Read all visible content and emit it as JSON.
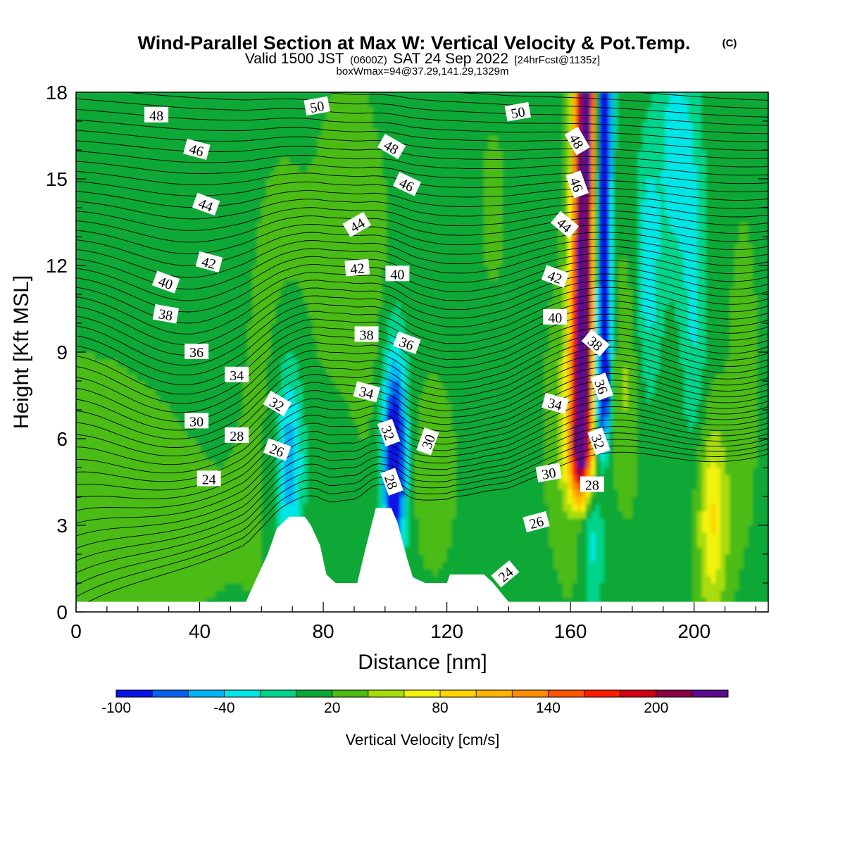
{
  "title": {
    "main": "Wind-Parallel Section at Max W: Vertical Velocity & Pot.Temp.",
    "copyright": "(C)",
    "valid_prefix": "Valid 1500 JST",
    "valid_z": "(0600Z)",
    "valid_date": "SAT 24 Sep 2022",
    "valid_fcst": "[24hrFcst@1135z]",
    "box_info": "boxWmax=94@37.29,141.29,1329m"
  },
  "chart_data": {
    "type": "heatmap",
    "xlabel": "Distance [nm]",
    "ylabel": "Height [Kft MSL]",
    "xlim": [
      0,
      224
    ],
    "ylim": [
      0,
      18
    ],
    "x_ticks": [
      0,
      40,
      80,
      120,
      160,
      200
    ],
    "y_ticks": [
      0,
      3,
      6,
      9,
      12,
      15,
      18
    ],
    "grid": false,
    "terrain_kft": [
      [
        0,
        0.35
      ],
      [
        55,
        0.35
      ],
      [
        56,
        0.6
      ],
      [
        59,
        1.3
      ],
      [
        62,
        2.0
      ],
      [
        65,
        2.9
      ],
      [
        69,
        3.3
      ],
      [
        74,
        3.3
      ],
      [
        76,
        3.0
      ],
      [
        79,
        2.3
      ],
      [
        81,
        1.3
      ],
      [
        84,
        1.0
      ],
      [
        91,
        1.0
      ],
      [
        93,
        1.9
      ],
      [
        97,
        3.6
      ],
      [
        102,
        3.6
      ],
      [
        104,
        3.1
      ],
      [
        107,
        1.9
      ],
      [
        109,
        1.2
      ],
      [
        113,
        1.0
      ],
      [
        120,
        1.0
      ],
      [
        121,
        1.3
      ],
      [
        132,
        1.3
      ],
      [
        135,
        1.0
      ],
      [
        138,
        0.6
      ],
      [
        140,
        0.35
      ],
      [
        224,
        0.35
      ]
    ],
    "colorbar": {
      "label": "Vertical Velocity [cm/s]",
      "tick_labels": [
        "-100",
        "-40",
        "20",
        "80",
        "140",
        "200"
      ],
      "tick_values": [
        -100,
        -40,
        20,
        80,
        140,
        200
      ],
      "levels": [
        -100,
        -80,
        -60,
        -40,
        -20,
        0,
        20,
        40,
        60,
        80,
        100,
        120,
        140,
        160,
        180,
        200,
        220,
        240
      ],
      "colors": [
        "#0a12e6",
        "#0660f0",
        "#00b4f5",
        "#00e6e6",
        "#00d48a",
        "#0aa834",
        "#4cbc14",
        "#a8dc0a",
        "#f2f20a",
        "#ffd200",
        "#ffb400",
        "#ff8c00",
        "#ff5500",
        "#ff1e00",
        "#d20014",
        "#8c0046",
        "#5a0a8c"
      ]
    },
    "theta_contours_label": "Pot.Temp.",
    "contour_labels": [
      {
        "v": "48",
        "x": 26,
        "y": 17.2,
        "r": 0
      },
      {
        "v": "50",
        "x": 78,
        "y": 17.5,
        "r": -10
      },
      {
        "v": "50",
        "x": 143,
        "y": 17.3,
        "r": -10
      },
      {
        "v": "46",
        "x": 39,
        "y": 16.0,
        "r": 15
      },
      {
        "v": "48",
        "x": 102,
        "y": 16.1,
        "r": 30
      },
      {
        "v": "48",
        "x": 162,
        "y": 16.3,
        "r": 60
      },
      {
        "v": "44",
        "x": 42,
        "y": 14.1,
        "r": 20
      },
      {
        "v": "46",
        "x": 107,
        "y": 14.8,
        "r": 25
      },
      {
        "v": "46",
        "x": 162,
        "y": 14.8,
        "r": 70
      },
      {
        "v": "44",
        "x": 91,
        "y": 13.4,
        "r": -30
      },
      {
        "v": "44",
        "x": 158,
        "y": 13.4,
        "r": 40
      },
      {
        "v": "42",
        "x": 43,
        "y": 12.1,
        "r": 15
      },
      {
        "v": "42",
        "x": 91,
        "y": 11.9,
        "r": -5
      },
      {
        "v": "40",
        "x": 104,
        "y": 11.7,
        "r": 0
      },
      {
        "v": "42",
        "x": 155,
        "y": 11.6,
        "r": 20
      },
      {
        "v": "40",
        "x": 29,
        "y": 11.4,
        "r": 20
      },
      {
        "v": "38",
        "x": 29,
        "y": 10.3,
        "r": 10
      },
      {
        "v": "40",
        "x": 155,
        "y": 10.2,
        "r": 0
      },
      {
        "v": "38",
        "x": 94,
        "y": 9.6,
        "r": 0
      },
      {
        "v": "36",
        "x": 107,
        "y": 9.3,
        "r": 20
      },
      {
        "v": "38",
        "x": 168,
        "y": 9.3,
        "r": 40
      },
      {
        "v": "36",
        "x": 39,
        "y": 9.0,
        "r": 0
      },
      {
        "v": "34",
        "x": 52,
        "y": 8.2,
        "r": 0
      },
      {
        "v": "36",
        "x": 170,
        "y": 7.8,
        "r": 70
      },
      {
        "v": "34",
        "x": 94,
        "y": 7.6,
        "r": 15
      },
      {
        "v": "32",
        "x": 65,
        "y": 7.2,
        "r": 30
      },
      {
        "v": "34",
        "x": 155,
        "y": 7.2,
        "r": 15
      },
      {
        "v": "30",
        "x": 39,
        "y": 6.6,
        "r": 0
      },
      {
        "v": "28",
        "x": 52,
        "y": 6.1,
        "r": 0
      },
      {
        "v": "32",
        "x": 101,
        "y": 6.2,
        "r": 70
      },
      {
        "v": "30",
        "x": 114,
        "y": 5.9,
        "r": -70
      },
      {
        "v": "32",
        "x": 169,
        "y": 5.9,
        "r": 70
      },
      {
        "v": "26",
        "x": 65,
        "y": 5.6,
        "r": 20
      },
      {
        "v": "24",
        "x": 43,
        "y": 4.6,
        "r": 0
      },
      {
        "v": "30",
        "x": 153,
        "y": 4.8,
        "r": -10
      },
      {
        "v": "28",
        "x": 102,
        "y": 4.5,
        "r": 70
      },
      {
        "v": "28",
        "x": 167,
        "y": 4.4,
        "r": 0
      },
      {
        "v": "26",
        "x": 149,
        "y": 3.1,
        "r": -15
      },
      {
        "v": "24",
        "x": 139,
        "y": 1.3,
        "r": -40
      }
    ]
  }
}
